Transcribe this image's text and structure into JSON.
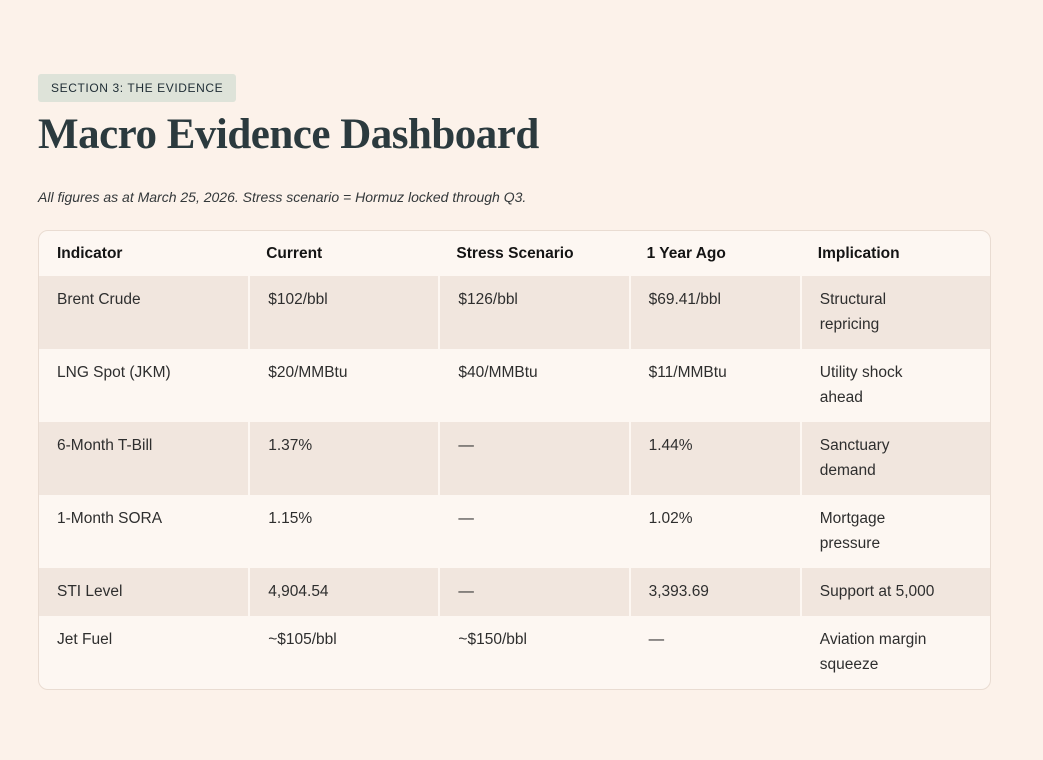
{
  "page": {
    "section_badge": "SECTION 3: THE EVIDENCE",
    "title": "Macro Evidence Dashboard",
    "subtitle": "All figures as at March 25, 2026. Stress scenario = Hormuz locked through Q3."
  },
  "table": {
    "columns": [
      "Indicator",
      "Current",
      "Stress Scenario",
      "1 Year Ago",
      "Implication"
    ],
    "column_keys": [
      "indicator",
      "current",
      "stress",
      "year_ago",
      "implication"
    ],
    "rows": [
      {
        "indicator": "Brent Crude",
        "current": "$102/bbl",
        "stress": "$126/bbl",
        "year_ago": "$69.41/bbl",
        "implication": "Structural\nrepricing"
      },
      {
        "indicator": "LNG Spot (JKM)",
        "current": "$20/MMBtu",
        "stress": "$40/MMBtu",
        "year_ago": "$11/MMBtu",
        "implication": "Utility shock\nahead"
      },
      {
        "indicator": "6-Month T-Bill",
        "current": "1.37%",
        "stress": "—",
        "year_ago": "1.44%",
        "implication": "Sanctuary\ndemand"
      },
      {
        "indicator": "1-Month SORA",
        "current": "1.15%",
        "stress": "—",
        "year_ago": "1.02%",
        "implication": "Mortgage\npressure"
      },
      {
        "indicator": "STI Level",
        "current": "4,904.54",
        "stress": "—",
        "year_ago": "3,393.69",
        "implication": "Support at 5,000"
      },
      {
        "indicator": "Jet Fuel",
        "current": "~$105/bbl",
        "stress": "~$150/bbl",
        "year_ago": "—",
        "implication": "Aviation margin\nsqueeze"
      }
    ]
  },
  "colors": {
    "page_background": "#fcf2ea",
    "badge_background": "#dee3d9",
    "badge_text": "#1e2c34",
    "title_text": "#2b3a3e",
    "table_background": "#fdf7f2",
    "table_border": "#e9dcd2",
    "row_stripe": "#f1e6de",
    "body_text": "#2e2e2e"
  }
}
